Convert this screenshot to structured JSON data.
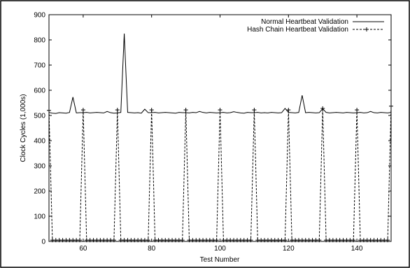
{
  "chart_data": {
    "type": "line",
    "title": "",
    "xlabel": "Test Number",
    "ylabel": "Clock Cycles (1,000s)",
    "xlim": [
      50,
      150
    ],
    "ylim": [
      0,
      900
    ],
    "x_ticks": [
      60,
      80,
      100,
      120,
      140
    ],
    "x_tick_labels": [
      "60",
      "80",
      "100",
      "120",
      "140"
    ],
    "y_ticks": [
      0,
      100,
      200,
      300,
      400,
      500,
      600,
      700,
      800,
      900
    ],
    "y_tick_labels": [
      "0",
      "100",
      "200",
      "300",
      "400",
      "500",
      "600",
      "700",
      "800",
      "900"
    ],
    "legend_position": "top-right",
    "grid": false,
    "series": [
      {
        "name": "Normal Heartbeat Validation",
        "style": "solid",
        "x": [
          50,
          51,
          52,
          53,
          54,
          55,
          56,
          57,
          58,
          59,
          60,
          61,
          62,
          63,
          64,
          65,
          66,
          67,
          68,
          69,
          70,
          71,
          72,
          73,
          74,
          75,
          76,
          77,
          78,
          79,
          80,
          81,
          82,
          83,
          84,
          85,
          86,
          87,
          88,
          89,
          90,
          91,
          92,
          93,
          94,
          95,
          96,
          97,
          98,
          99,
          100,
          101,
          102,
          103,
          104,
          105,
          106,
          107,
          108,
          109,
          110,
          111,
          112,
          113,
          114,
          115,
          116,
          117,
          118,
          119,
          120,
          121,
          122,
          123,
          124,
          125,
          126,
          127,
          128,
          129,
          130,
          131,
          132,
          133,
          134,
          135,
          136,
          137,
          138,
          139,
          140,
          141,
          142,
          143,
          144,
          145,
          146,
          147,
          148,
          149,
          150
        ],
        "y": [
          512,
          509,
          508,
          511,
          510,
          509,
          512,
          573,
          510,
          511,
          511,
          512,
          510,
          511,
          512,
          511,
          510,
          516,
          511,
          509,
          510,
          512,
          825,
          512,
          511,
          510,
          511,
          509,
          525,
          511,
          511,
          512,
          510,
          511,
          512,
          511,
          510,
          509,
          512,
          511,
          511,
          510,
          512,
          511,
          516,
          512,
          510,
          512,
          511,
          510,
          511,
          512,
          510,
          511,
          515,
          512,
          510,
          509,
          512,
          511,
          511,
          512,
          510,
          511,
          510,
          512,
          511,
          510,
          511,
          528,
          512,
          511,
          510,
          512,
          580,
          511,
          512,
          511,
          510,
          511,
          527,
          512,
          510,
          511,
          512,
          511,
          510,
          512,
          511,
          510,
          511,
          512,
          510,
          511,
          516,
          511,
          510,
          512,
          511,
          510,
          512
        ]
      },
      {
        "name": "Hash Chain Heartbeat Validation",
        "style": "dashed",
        "x": [
          50,
          51,
          52,
          53,
          54,
          55,
          56,
          57,
          58,
          59,
          60,
          61,
          62,
          63,
          64,
          65,
          66,
          67,
          68,
          69,
          70,
          71,
          72,
          73,
          74,
          75,
          76,
          77,
          78,
          79,
          80,
          81,
          82,
          83,
          84,
          85,
          86,
          87,
          88,
          89,
          90,
          91,
          92,
          93,
          94,
          95,
          96,
          97,
          98,
          99,
          100,
          101,
          102,
          103,
          104,
          105,
          106,
          107,
          108,
          109,
          110,
          111,
          112,
          113,
          114,
          115,
          116,
          117,
          118,
          119,
          120,
          121,
          122,
          123,
          124,
          125,
          126,
          127,
          128,
          129,
          130,
          131,
          132,
          133,
          134,
          135,
          136,
          137,
          138,
          139,
          140,
          141,
          142,
          143,
          144,
          145,
          146,
          147,
          148,
          149,
          150
        ],
        "y": [
          520,
          5,
          5,
          5,
          5,
          5,
          5,
          5,
          5,
          5,
          522,
          5,
          5,
          5,
          5,
          5,
          5,
          5,
          5,
          5,
          522,
          5,
          5,
          5,
          5,
          5,
          5,
          5,
          5,
          5,
          522,
          5,
          5,
          5,
          5,
          5,
          5,
          5,
          5,
          5,
          522,
          5,
          5,
          5,
          5,
          5,
          5,
          5,
          5,
          5,
          522,
          5,
          5,
          5,
          5,
          5,
          5,
          5,
          5,
          5,
          522,
          5,
          5,
          5,
          5,
          5,
          5,
          5,
          5,
          5,
          522,
          5,
          5,
          5,
          5,
          5,
          5,
          5,
          5,
          5,
          528,
          5,
          5,
          5,
          5,
          5,
          5,
          5,
          5,
          5,
          522,
          5,
          5,
          5,
          5,
          5,
          5,
          5,
          5,
          5,
          537
        ]
      }
    ]
  }
}
